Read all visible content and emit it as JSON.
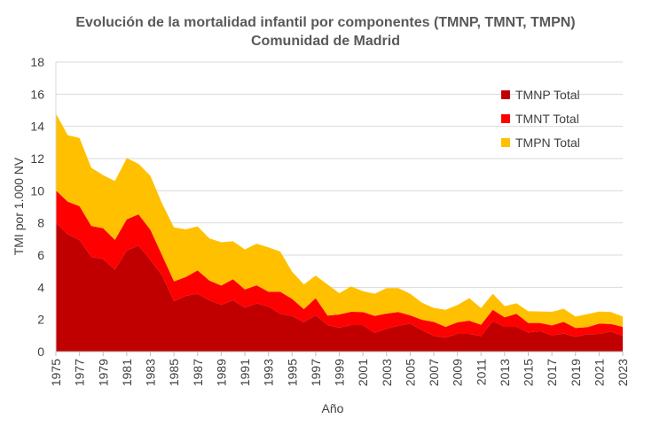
{
  "chart_data": {
    "type": "area",
    "stacked": true,
    "title": "Evolución de la mortalidad infantil por componentes (TMNP, TMNT, TMPN)",
    "subtitle": "Comunidad de Madrid",
    "xlabel": "Año",
    "ylabel": "TMI por 1.000 NV",
    "ylim": [
      0,
      18
    ],
    "yticks": [
      0,
      2,
      4,
      6,
      8,
      10,
      12,
      14,
      16,
      18
    ],
    "xlim": [
      1975,
      2023
    ],
    "xtick_labels": [
      "1975",
      "1977",
      "1979",
      "1981",
      "1983",
      "1985",
      "1987",
      "1989",
      "1991",
      "1993",
      "1995",
      "1997",
      "1999",
      "2001",
      "2003",
      "2005",
      "2007",
      "2009",
      "2011",
      "2013",
      "2015",
      "2017",
      "2019",
      "2021",
      "2023"
    ],
    "grid": "horizontal",
    "legend_position": "top-right",
    "x": [
      1975,
      1976,
      1977,
      1978,
      1979,
      1980,
      1981,
      1982,
      1983,
      1984,
      1985,
      1986,
      1987,
      1988,
      1989,
      1990,
      1991,
      1992,
      1993,
      1994,
      1995,
      1996,
      1997,
      1998,
      1999,
      2000,
      2001,
      2002,
      2003,
      2004,
      2005,
      2006,
      2007,
      2008,
      2009,
      2010,
      2011,
      2012,
      2013,
      2014,
      2015,
      2016,
      2017,
      2018,
      2019,
      2020,
      2021,
      2022,
      2023
    ],
    "series": [
      {
        "name": "TMNP Total",
        "color": "#C00000",
        "values": [
          8.0,
          7.3,
          6.93,
          5.89,
          5.76,
          5.1,
          6.29,
          6.59,
          5.71,
          4.73,
          3.14,
          3.47,
          3.6,
          3.19,
          2.92,
          3.19,
          2.73,
          3.0,
          2.81,
          2.35,
          2.22,
          1.82,
          2.26,
          1.65,
          1.49,
          1.65,
          1.65,
          1.16,
          1.43,
          1.61,
          1.74,
          1.34,
          0.98,
          0.87,
          1.1,
          1.1,
          0.97,
          1.89,
          1.54,
          1.54,
          1.19,
          1.27,
          1.01,
          1.12,
          0.92,
          1.08,
          1.1,
          1.25,
          0.99
        ]
      },
      {
        "name": "TMNT Total",
        "color": "#FF0000",
        "values": [
          2.02,
          2.02,
          2.11,
          1.92,
          1.91,
          1.85,
          1.93,
          1.94,
          1.87,
          1.25,
          1.23,
          1.17,
          1.45,
          1.23,
          1.19,
          1.31,
          1.14,
          1.12,
          0.91,
          1.37,
          1.06,
          0.82,
          1.06,
          0.59,
          0.82,
          0.83,
          0.81,
          1.06,
          0.94,
          0.85,
          0.52,
          0.64,
          0.87,
          0.67,
          0.72,
          0.83,
          0.7,
          0.71,
          0.59,
          0.81,
          0.59,
          0.51,
          0.62,
          0.73,
          0.55,
          0.44,
          0.64,
          0.47,
          0.55
        ]
      },
      {
        "name": "TMPN Total",
        "color": "#FFC000",
        "values": [
          4.78,
          4.13,
          4.24,
          3.62,
          3.3,
          3.65,
          3.81,
          3.14,
          3.35,
          3.21,
          3.35,
          2.96,
          2.73,
          2.62,
          2.69,
          2.36,
          2.48,
          2.59,
          2.76,
          2.5,
          1.69,
          1.54,
          1.41,
          1.94,
          1.32,
          1.57,
          1.3,
          1.38,
          1.58,
          1.49,
          1.34,
          1.06,
          0.87,
          1.06,
          1.08,
          1.39,
          1.04,
          1.0,
          0.7,
          0.66,
          0.73,
          0.72,
          0.85,
          0.81,
          0.71,
          0.81,
          0.75,
          0.74,
          0.64
        ]
      }
    ]
  }
}
